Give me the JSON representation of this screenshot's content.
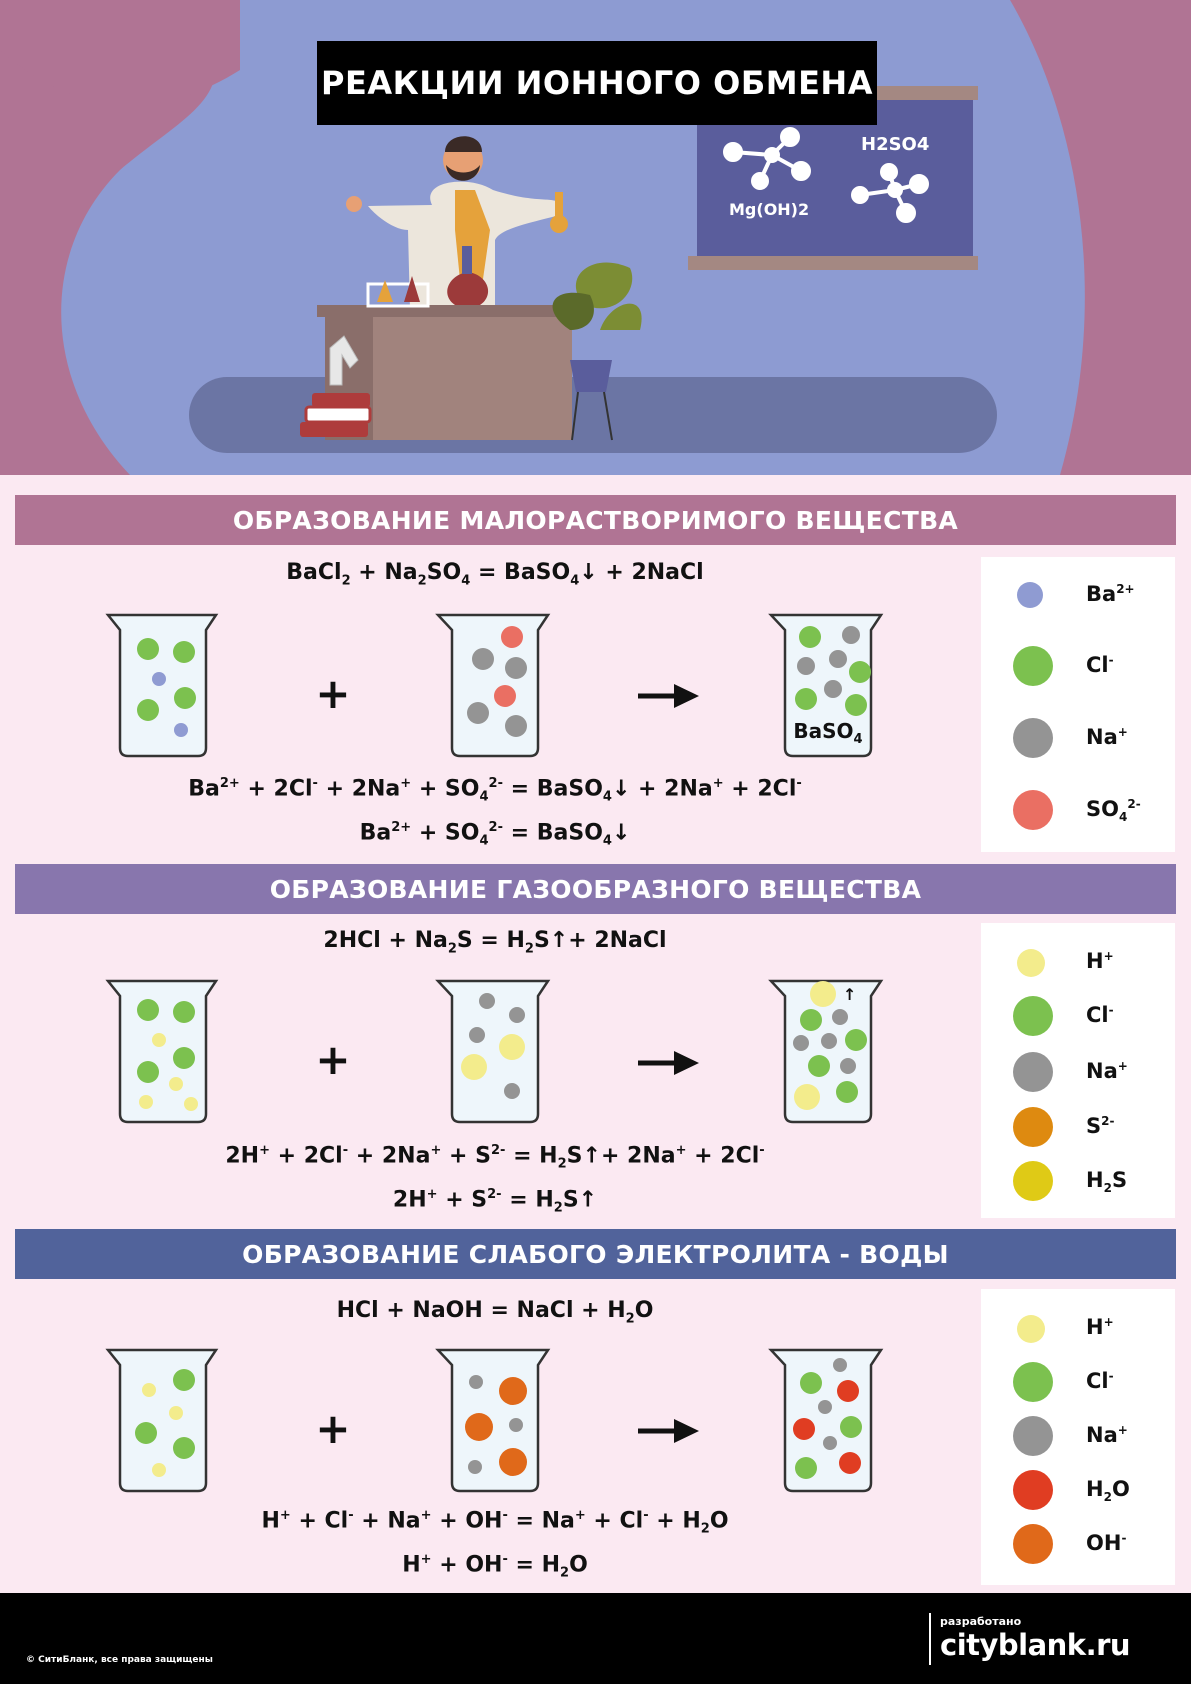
{
  "title": "РЕАКЦИИ ИОННОГО ОБМЕНА",
  "board": {
    "label_left": "Mg(OH)2",
    "label_right": "H2SO4"
  },
  "sections": [
    {
      "heading": "ОБРАЗОВАНИЕ МАЛОРАСТВОРИМОГО ВЕЩЕСТВА",
      "color": "#b07494",
      "precipitate_label": "BaSO4",
      "legend": [
        {
          "ion": "Ba2+",
          "color": "#8f9bd2"
        },
        {
          "ion": "Cl-",
          "color": "#7cc14f"
        },
        {
          "ion": "Na+",
          "color": "#949494"
        },
        {
          "ion": "SO42-",
          "color": "#ea6f63"
        }
      ]
    },
    {
      "heading": "ОБРАЗОВАНИЕ ГАЗООБРАЗНОГО ВЕЩЕСТВА",
      "color": "#8876ad",
      "legend": [
        {
          "ion": "H+",
          "color": "#f3ec8c"
        },
        {
          "ion": "Cl-",
          "color": "#7cc14f"
        },
        {
          "ion": "Na+",
          "color": "#949494"
        },
        {
          "ion": "S2-",
          "color": "#de8a10"
        },
        {
          "ion": "H2S",
          "color": "#dfca16"
        }
      ]
    },
    {
      "heading": "ОБРАЗОВАНИЕ СЛАБОГО ЭЛЕКТРОЛИТА - ВОДЫ",
      "color": "#51639b",
      "legend": [
        {
          "ion": "H+",
          "color": "#f3ec8c"
        },
        {
          "ion": "Cl-",
          "color": "#7cc14f"
        },
        {
          "ion": "Na+",
          "color": "#949494"
        },
        {
          "ion": "H2O",
          "color": "#e03d22"
        },
        {
          "ion": "OH-",
          "color": "#e0691a"
        }
      ]
    }
  ],
  "equations": {
    "s1_molecular": [
      "BaCl",
      "2",
      " + Na",
      "2",
      "SO",
      "4",
      " = BaSO",
      "4",
      "↓",
      " + 2NaCl"
    ],
    "s1_full": [
      "Ba",
      "2+",
      " + 2Cl",
      "-",
      " + 2Na",
      "+",
      " + SO",
      "4",
      "2-",
      " = BaSO",
      "4",
      "↓",
      " + 2Na",
      "+",
      " + 2Cl",
      "-"
    ],
    "s1_short": [
      "Ba",
      "2+",
      " + SO",
      "4",
      "2-",
      " = BaSO",
      "4",
      "↓"
    ],
    "s2_molecular": [
      "2HCl + Na",
      "2",
      "S = H",
      "2",
      "S",
      "↑",
      "+ 2NaCl"
    ],
    "s2_full": [
      "2H",
      "+",
      " + 2Cl",
      "-",
      " + 2Na",
      "+",
      " + S",
      "2-",
      " = H",
      "2",
      "S",
      "↑",
      "+ 2Na",
      "+",
      " + 2Cl",
      "-"
    ],
    "s2_short": [
      "2H",
      "+",
      " + S",
      "2-",
      " = H",
      "2",
      "S",
      "↑"
    ],
    "s3_molecular": [
      "HCl + NaOH = NaCl + H",
      "2",
      "O"
    ],
    "s3_full": [
      "H",
      "+",
      " + Cl",
      "-",
      " + Na",
      "+",
      " + OH",
      "-",
      " = Na",
      "+",
      " + Cl",
      "-",
      " + H",
      "2",
      "O"
    ],
    "s3_short": [
      "H",
      "+",
      " + OH",
      "-",
      " = H",
      "2",
      "O"
    ]
  },
  "symbols": {
    "plus": "+",
    "arrow": "→",
    "gas_arrow": "↑"
  },
  "footer": {
    "copyright": "© СитиБланк, все права защищены",
    "developed_by": "разработано",
    "brand": "cityblank.ru"
  }
}
